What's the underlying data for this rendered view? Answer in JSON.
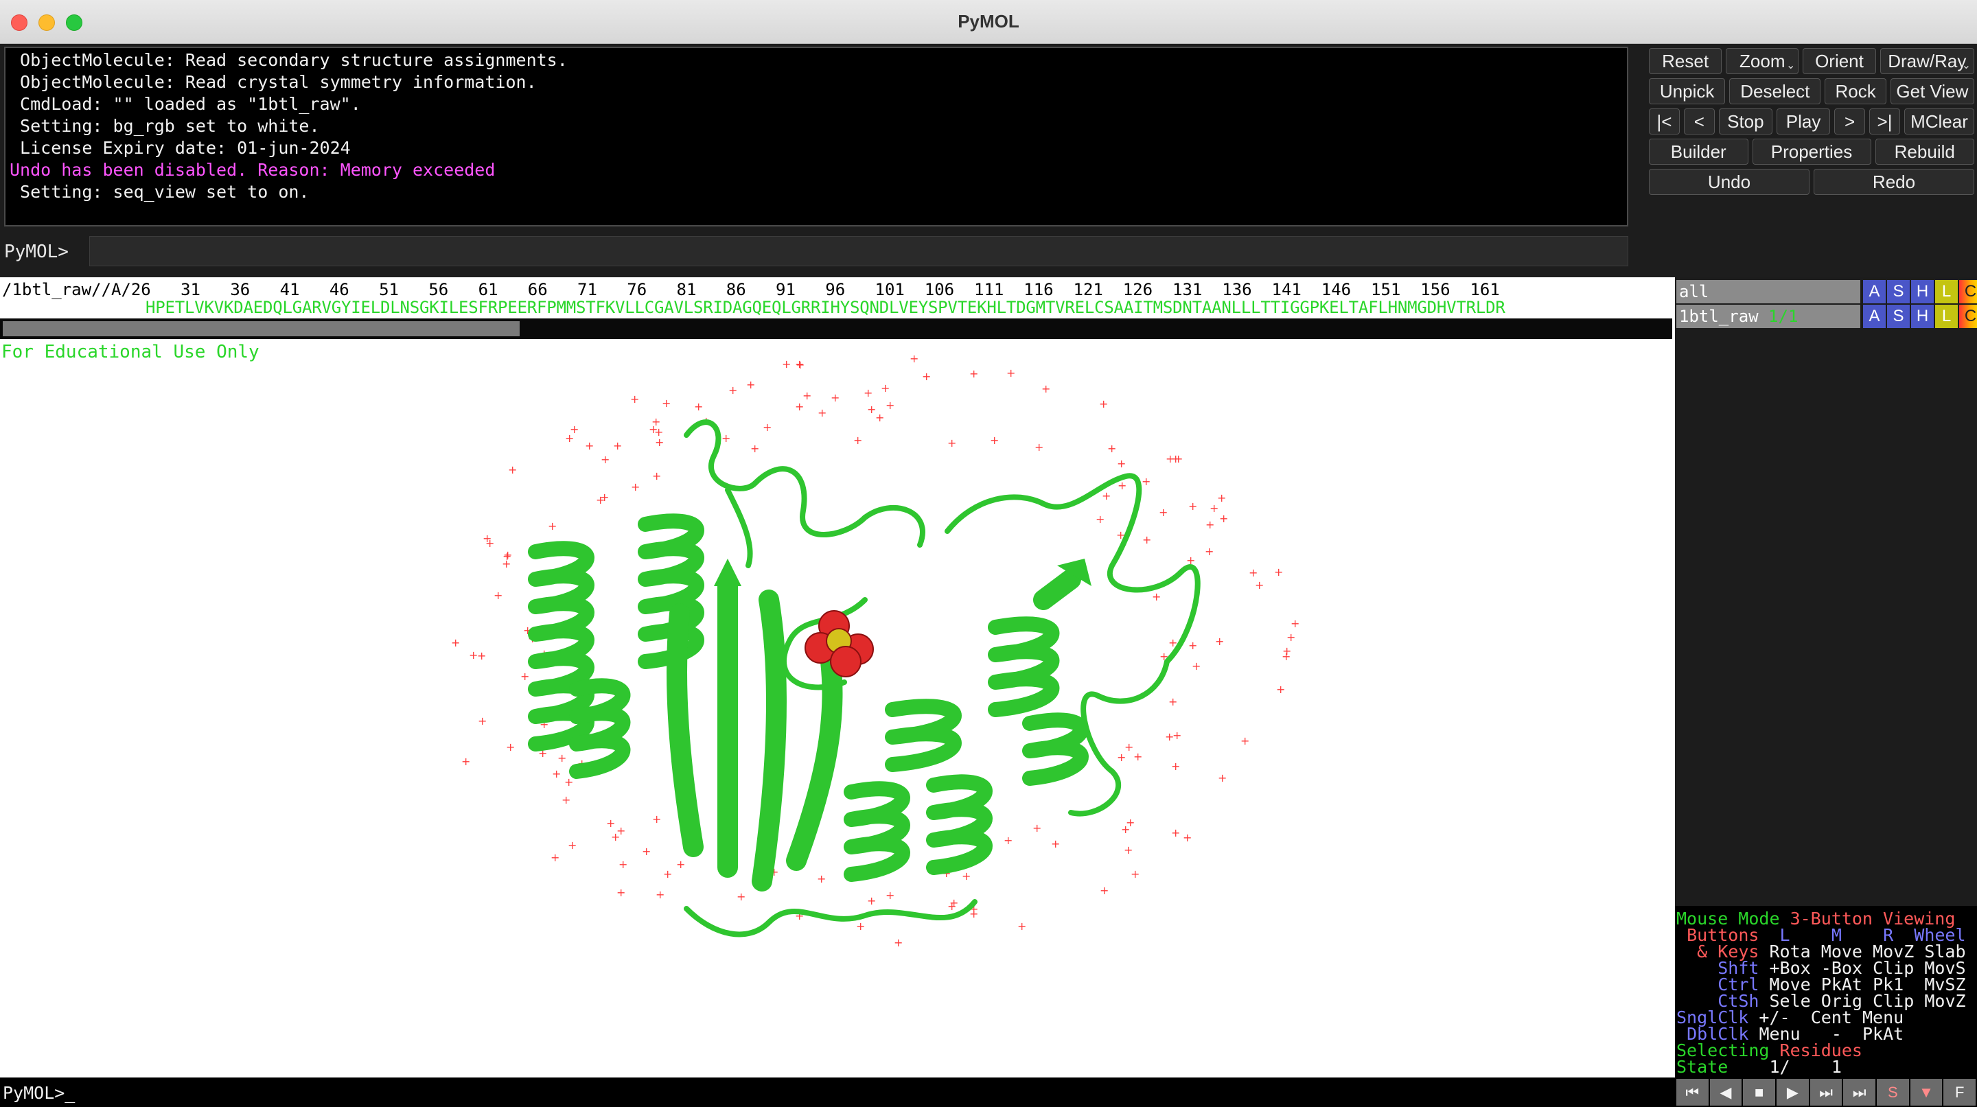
{
  "window": {
    "title": "PyMOL"
  },
  "console": {
    "lines": [
      " ObjectMolecule: Read secondary structure assignments.",
      " ObjectMolecule: Read crystal symmetry information.",
      " CmdLoad: \"\" loaded as \"1btl_raw\".",
      " Setting: bg_rgb set to white.",
      " License Expiry date: 01-jun-2024",
      "Undo has been disabled. Reason: Memory exceeded",
      " Setting: seq_view set to on."
    ],
    "prompt": "PyMOL>",
    "input_value": ""
  },
  "buttons": {
    "reset": "Reset",
    "zoom": "Zoom",
    "orient": "Orient",
    "draw_ray": "Draw/Ray",
    "unpick": "Unpick",
    "deselect": "Deselect",
    "rock": "Rock",
    "get_view": "Get View",
    "first": "|<",
    "prev": "<",
    "stop": "Stop",
    "play": "Play",
    "next": ">",
    "last": ">|",
    "mclear": "MClear",
    "builder": "Builder",
    "properties": "Properties",
    "rebuild": "Rebuild",
    "undo": "Undo",
    "redo": "Redo",
    "dropdown_glyph": "⌄"
  },
  "sequence": {
    "numbers_line": "/1btl_raw//A/26   31   36   41   46   51   56   61   66   71   76   81   86   91   96   101  106  111  116  121  126  131  136  141  146  151  156  161",
    "residues": "HPETLVKVKDAEDQLGARVGYIELDLNSGKILESFRPEERFPMMSTFKVLLCGAVLSRIDAGQEQLGRRIHYSQNDLVEYSPVTEKHLTDGMTVRELCSAAITMSDNTAANLLLTTIGGPKELTAFLHNMGDHVTRLDR",
    "scroll_fraction": 0.31
  },
  "viewport": {
    "watermark": "For Educational Use Only"
  },
  "objects": [
    {
      "name": "all",
      "state": ""
    },
    {
      "name": "1btl_raw",
      "state": "1/1"
    }
  ],
  "object_buttons": [
    "A",
    "S",
    "H",
    "L",
    "C"
  ],
  "mouse_panel": {
    "mode_label": "Mouse Mode",
    "mode_value": "3-Button Viewing",
    "buttons_label": "Buttons",
    "col_l": "L",
    "col_m": "M",
    "col_r": "R",
    "col_wheel": "Wheel",
    "keys_label": "& Keys",
    "rows": [
      {
        "key": "",
        "l": "Rota",
        "m": "Move",
        "r": "MovZ",
        "wheel": "Slab"
      },
      {
        "key": "Shft",
        "l": "+Box",
        "m": "-Box",
        "r": "Clip",
        "wheel": "MovS"
      },
      {
        "key": "Ctrl",
        "l": "Move",
        "m": "PkAt",
        "r": "Pk1",
        "wheel": "MvSZ"
      },
      {
        "key": "CtSh",
        "l": "Sele",
        "m": "Orig",
        "r": "Clip",
        "wheel": "MovZ"
      },
      {
        "key": "SnglClk",
        "l": "+/-",
        "m": "Cent",
        "r": "Menu",
        "wheel": ""
      },
      {
        "key": "DblClk",
        "l": "Menu",
        "m": "-",
        "r": "PkAt",
        "wheel": ""
      }
    ],
    "selecting_label": "Selecting",
    "selecting_value": "Residues",
    "state_label": "State",
    "state_value": "1/",
    "state_max": "1"
  },
  "bottom": {
    "prompt": "PyMOL>_"
  },
  "transport": [
    "⏮",
    "◀",
    "■",
    "▶",
    "⏭",
    "⏭",
    "S",
    "▼",
    "F"
  ],
  "colors": {
    "cartoon": "#2fc52f",
    "sulfur": "#d4c21c",
    "oxygen": "#e02a2a",
    "water": "#ff3b3b",
    "accent_green": "#2ad62a"
  }
}
